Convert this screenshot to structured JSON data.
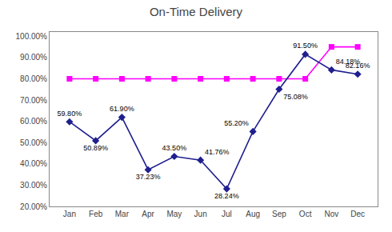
{
  "chart_data": {
    "type": "line",
    "title": "On-Time Delivery",
    "categories": [
      "Jan",
      "Feb",
      "Mar",
      "Apr",
      "May",
      "Jun",
      "Jul",
      "Aug",
      "Sep",
      "Oct",
      "Nov",
      "Dec"
    ],
    "series": [
      {
        "color": "#FF00FF",
        "marker": "square",
        "values": [
          80.0,
          80.0,
          80.0,
          80.0,
          80.0,
          80.0,
          80.0,
          80.0,
          80.0,
          80.0,
          95.0,
          95.0
        ]
      },
      {
        "color": "#1F1F8F",
        "marker": "diamond",
        "data_labels": true,
        "values": [
          59.8,
          50.89,
          61.9,
          37.23,
          43.5,
          41.76,
          28.24,
          55.2,
          75.08,
          91.5,
          84.18,
          82.16
        ],
        "value_labels": [
          "59.80%",
          "50.89%",
          "61.90%",
          "37.23%",
          "43.50%",
          "41.76%",
          "28.24%",
          "55.20%",
          "75.08%",
          "91.50%",
          "84.18%",
          "82.16%"
        ]
      }
    ],
    "ylim": [
      20.0,
      102.0
    ],
    "yticks": [
      {
        "value": 20,
        "label": "20.00%"
      },
      {
        "value": 30,
        "label": "30.00%"
      },
      {
        "value": 40,
        "label": "40.00%"
      },
      {
        "value": 50,
        "label": "50.00%"
      },
      {
        "value": 60,
        "label": "60.00%"
      },
      {
        "value": 70,
        "label": "70.00%"
      },
      {
        "value": 80,
        "label": "80.00%"
      },
      {
        "value": 90,
        "label": "90.00%"
      },
      {
        "value": 100,
        "label": "100.00%"
      }
    ],
    "grid": false,
    "legend": false
  }
}
